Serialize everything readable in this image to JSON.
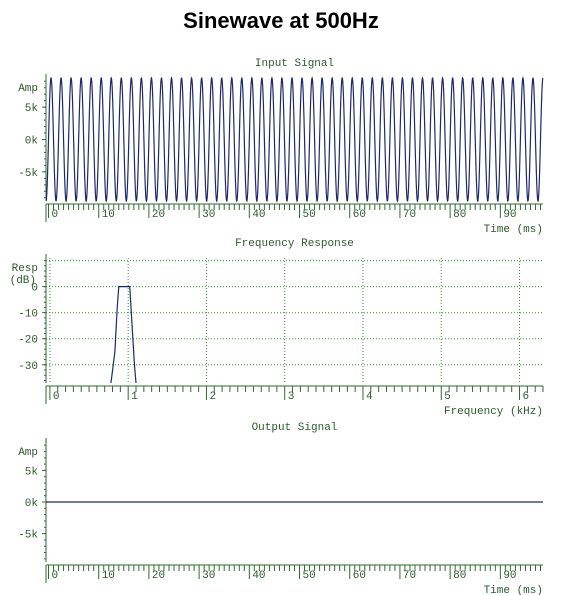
{
  "title": "Sinewave at 500Hz",
  "colors": {
    "axis": "#2e6b2e",
    "grid": "#2e9a2e",
    "signal": "#1c2a6a",
    "text": "#2e5a2e"
  },
  "chart_data": [
    {
      "type": "line",
      "title": "Input Signal",
      "ylabel": "Amp",
      "xlabel": "Time (ms)",
      "xlim": [
        -0.5,
        98.5
      ],
      "ylim": [
        -9500,
        9500
      ],
      "xticks": [
        0,
        10,
        20,
        30,
        40,
        50,
        60,
        70,
        80,
        90
      ],
      "xtick_labels": [
        "0",
        "10",
        "20",
        "30",
        "40",
        "50",
        "60",
        "70",
        "80",
        "90"
      ],
      "yticks": [
        -5000,
        0,
        5000
      ],
      "ytick_labels": [
        "-5k",
        "0k",
        "5k"
      ],
      "grid": false,
      "series": [
        {
          "frequency_hz": 500,
          "amplitude": 9500,
          "x_range": [
            -0.5,
            98.5
          ]
        }
      ]
    },
    {
      "type": "line",
      "title": "Frequency Response",
      "ylabel": "Resp (dB)",
      "xlabel": "Frequency (kHz)",
      "xlim": [
        -0.05,
        6.3
      ],
      "ylim": [
        -37,
        11
      ],
      "xticks": [
        0,
        1,
        2,
        3,
        4,
        5,
        6
      ],
      "xtick_labels": [
        "0",
        "1",
        "2",
        "3",
        "4",
        "5",
        "6"
      ],
      "yticks": [
        0,
        -10,
        -20,
        -30
      ],
      "ytick_labels": [
        "0",
        "-10",
        "-20",
        "-30"
      ],
      "grid": true,
      "series": [
        {
          "x": [
            0.78,
            0.83,
            0.86,
            0.88,
            0.98,
            1.02,
            1.05,
            1.08,
            1.1
          ],
          "y": [
            -37,
            -25,
            -8,
            0,
            0,
            0,
            -15,
            -30,
            -37
          ]
        }
      ]
    },
    {
      "type": "line",
      "title": "Output Signal",
      "ylabel": "Amp",
      "xlabel": "Time (ms)",
      "xlim": [
        -0.5,
        98.5
      ],
      "ylim": [
        -9500,
        9500
      ],
      "xticks": [
        0,
        10,
        20,
        30,
        40,
        50,
        60,
        70,
        80,
        90
      ],
      "xtick_labels": [
        "0",
        "10",
        "20",
        "30",
        "40",
        "50",
        "60",
        "70",
        "80",
        "90"
      ],
      "yticks": [
        -5000,
        0,
        5000
      ],
      "ytick_labels": [
        "-5k",
        "0k",
        "5k"
      ],
      "grid": false,
      "series": [
        {
          "x": [
            -0.5,
            98.5
          ],
          "y": [
            0,
            0
          ]
        }
      ]
    }
  ]
}
